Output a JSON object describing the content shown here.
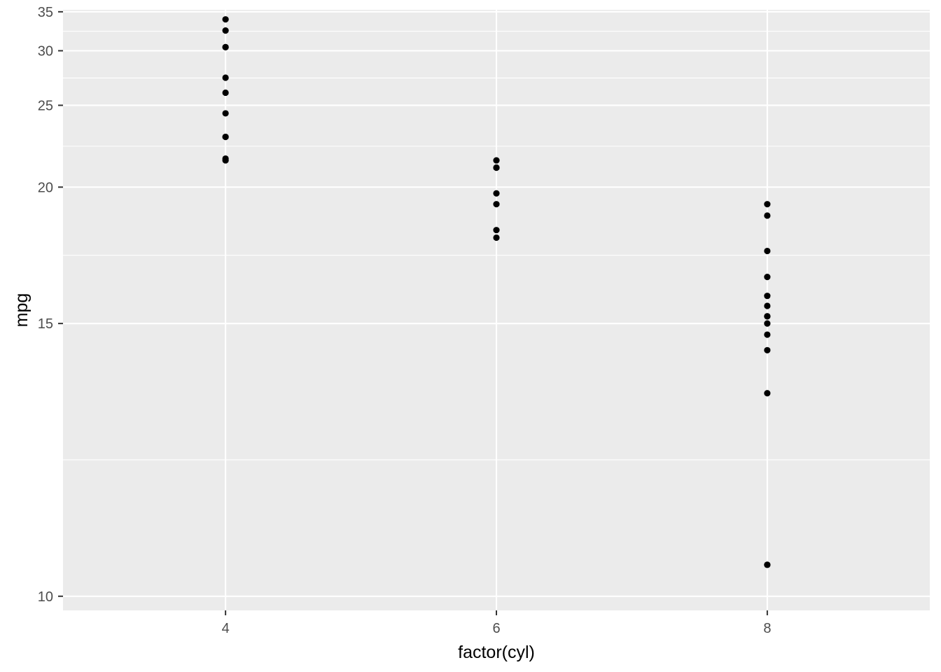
{
  "chart_data": {
    "type": "scatter",
    "title": "",
    "xlabel": "factor(cyl)",
    "ylabel": "mpg",
    "x_scale": "discrete",
    "y_scale": "reciprocal",
    "categories": [
      "4",
      "6",
      "8"
    ],
    "ylim": [
      9.83,
      35.3
    ],
    "y_ticks": [
      10,
      15,
      20,
      25,
      30,
      35
    ],
    "y_tick_labels": [
      "10",
      "15",
      "20",
      "25",
      "30",
      "35"
    ],
    "x_tick_labels": [
      "4",
      "6",
      "8"
    ],
    "grid": true,
    "legend": "none",
    "point_color": "#000000",
    "panel_color": "#ebebeb",
    "grid_color": "#ffffff",
    "series": [
      {
        "category": "4",
        "values": [
          22.8,
          24.4,
          22.8,
          32.4,
          30.4,
          33.9,
          21.5,
          27.3,
          26.0,
          30.4,
          21.4
        ]
      },
      {
        "category": "6",
        "values": [
          21.0,
          21.0,
          21.4,
          18.1,
          19.2,
          17.8,
          19.7
        ]
      },
      {
        "category": "8",
        "values": [
          18.7,
          14.3,
          16.4,
          17.3,
          15.2,
          10.4,
          10.4,
          14.7,
          15.5,
          15.2,
          13.3,
          19.2,
          15.8,
          15.0
        ]
      }
    ]
  }
}
